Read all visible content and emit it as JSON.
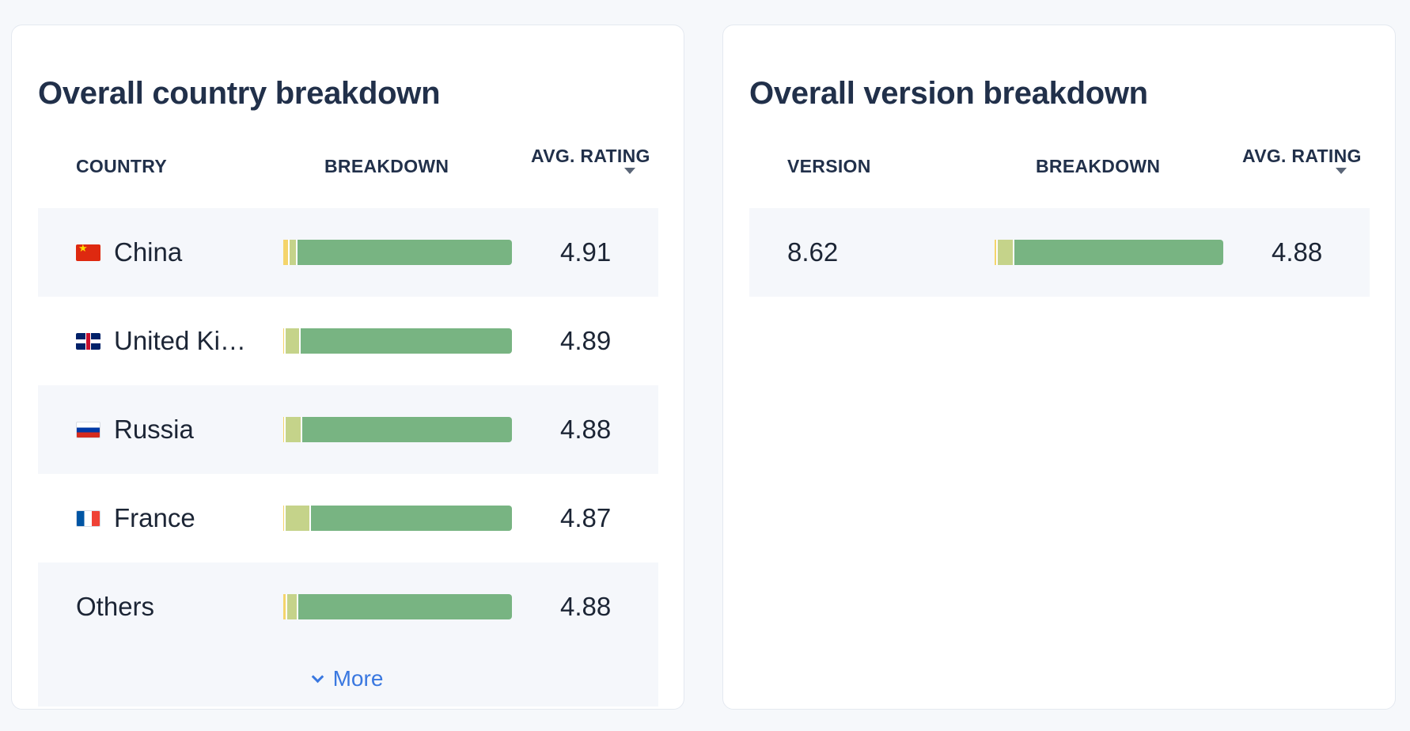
{
  "colors": {
    "title": "#21304a",
    "link": "#3a78e0",
    "row_shade": "#f5f7fb",
    "segments": [
      "#f4d46b",
      "#c5d38a",
      "#78b482"
    ]
  },
  "country_card": {
    "title": "Overall country breakdown",
    "headers": {
      "name": "COUNTRY",
      "breakdown": "BREAKDOWN",
      "rating": "AVG. RATING"
    },
    "rows": [
      {
        "name": "China",
        "flag": "china-flag",
        "rating": "4.91",
        "breakdown": [
          0.02,
          0.035,
          0.945
        ]
      },
      {
        "name": "United Ki…",
        "flag": "united-kingdom-flag",
        "rating": "4.89",
        "breakdown": [
          0.005,
          0.065,
          0.93
        ]
      },
      {
        "name": "Russia",
        "flag": "russia-flag",
        "rating": "4.88",
        "breakdown": [
          0.005,
          0.07,
          0.925
        ]
      },
      {
        "name": "France",
        "flag": "france-flag",
        "rating": "4.87",
        "breakdown": [
          0.003,
          0.11,
          0.887
        ]
      },
      {
        "name": "Others",
        "flag": "",
        "rating": "4.88",
        "breakdown": [
          0.01,
          0.05,
          0.94
        ]
      }
    ],
    "more_label": "More"
  },
  "version_card": {
    "title": "Overall version breakdown",
    "headers": {
      "name": "VERSION",
      "breakdown": "BREAKDOWN",
      "rating": "AVG. RATING"
    },
    "rows": [
      {
        "name": "8.62",
        "flag": "",
        "rating": "4.88",
        "breakdown": [
          0.008,
          0.07,
          0.922
        ]
      }
    ]
  }
}
